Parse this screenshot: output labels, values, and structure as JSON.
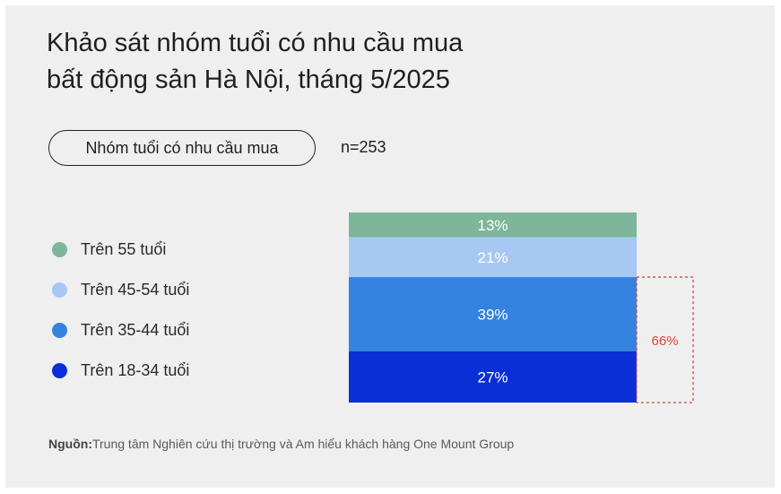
{
  "title_line1": "Khảo sát nhóm tuổi có nhu cầu mua",
  "title_line2": "bất động sản Hà Nội, tháng 5/2025",
  "subtitle_pill": "Nhóm tuổi có nhu cầu mua",
  "sample_size": "n=253",
  "source_label": "Nguồn:",
  "source_text": "Trung tâm Nghiên cứu thị trường và Am hiểu khách hàng One Mount Group",
  "chart_data": {
    "type": "bar",
    "stacked": true,
    "categories": [
      "Nhóm tuổi có nhu cầu mua"
    ],
    "unit": "%",
    "series": [
      {
        "name": "Trên 55 tuổi",
        "value": 13,
        "label": "13%",
        "color": "#7db69a"
      },
      {
        "name": "Trên 45-54 tuổi",
        "value": 21,
        "label": "21%",
        "color": "#a8c8f4"
      },
      {
        "name": "Trên 35-44 tuổi",
        "value": 39,
        "label": "39%",
        "color": "#3483e0"
      },
      {
        "name": "Trên 18-34 tuổi",
        "value": 27,
        "label": "27%",
        "color": "#0a2fd6"
      }
    ],
    "stack_order": "top-to-bottom",
    "annotation": {
      "label": "66%",
      "covers": [
        "Trên 35-44 tuổi",
        "Trên 18-34 tuổi"
      ],
      "color": "#e0453a"
    },
    "legend_position": "left"
  }
}
